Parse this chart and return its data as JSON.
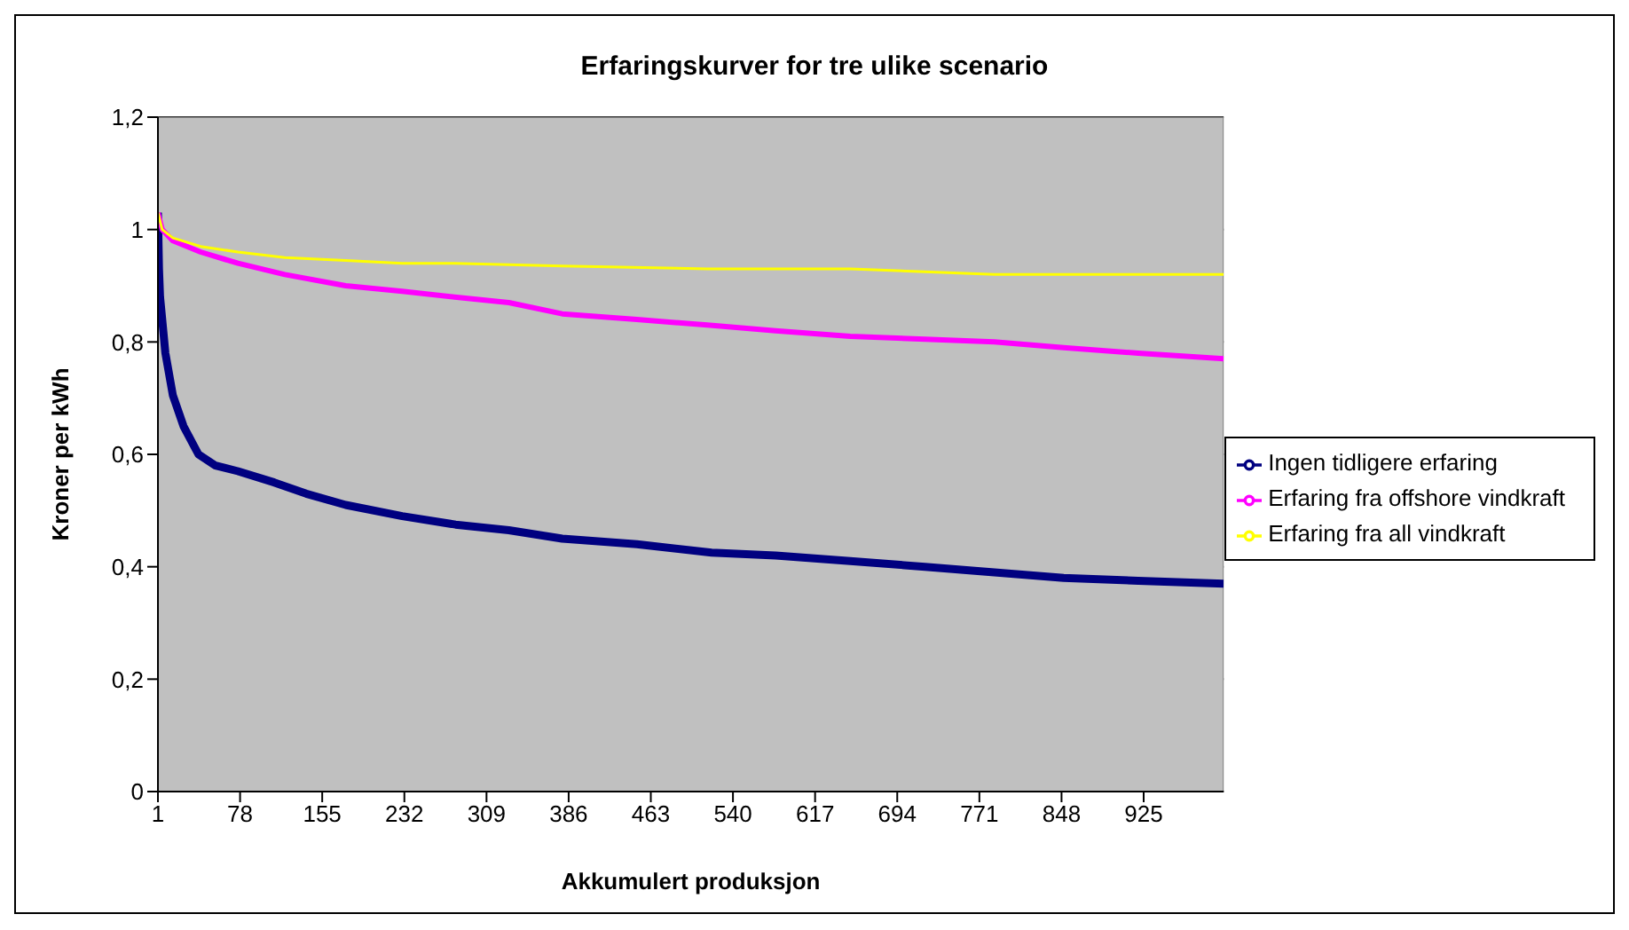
{
  "chart_data": {
    "type": "line",
    "title": "Erfaringskurver for tre ulike scenario",
    "xlabel": "Akkumulert produksjon",
    "ylabel": "Kroner per kWh",
    "xlim": [
      1,
      1000
    ],
    "xticks": [
      1,
      78,
      155,
      232,
      309,
      386,
      463,
      540,
      617,
      694,
      771,
      848,
      925
    ],
    "ylim": [
      0,
      1.2
    ],
    "yticks": [
      0,
      {
        "value": 0.2,
        "label": "0,2"
      },
      {
        "value": 0.4,
        "label": "0,4"
      },
      {
        "value": 0.6,
        "label": "0,6"
      },
      {
        "value": 0.8,
        "label": "0,8"
      },
      1,
      {
        "value": 1.2,
        "label": "1,2"
      }
    ],
    "grid": "y",
    "legend": "right",
    "marker": "none",
    "line_style": "solid",
    "series": [
      {
        "name": "Ingen tidligere erfaring",
        "color": "#000080",
        "x": [
          1,
          2,
          3,
          5,
          8,
          15,
          25,
          39,
          55,
          76,
          110,
          140,
          177,
          230,
          280,
          330,
          380,
          450,
          520,
          580,
          650,
          720,
          785,
          850,
          920,
          1000
        ],
        "values": [
          1.03,
          0.93,
          0.88,
          0.84,
          0.78,
          0.705,
          0.65,
          0.6,
          0.58,
          0.57,
          0.55,
          0.53,
          0.51,
          0.49,
          0.475,
          0.465,
          0.45,
          0.44,
          0.425,
          0.42,
          0.41,
          0.4,
          0.39,
          0.38,
          0.375,
          0.37
        ]
      },
      {
        "name": "Erfaring fra offshore vindkraft",
        "color": "#ff00ff",
        "x": [
          1,
          5,
          15,
          41,
          76,
          120,
          177,
          230,
          279,
          330,
          380,
          450,
          516,
          580,
          650,
          720,
          785,
          850,
          920,
          1000
        ],
        "values": [
          1.03,
          1.0,
          0.98,
          0.96,
          0.94,
          0.92,
          0.9,
          0.89,
          0.88,
          0.87,
          0.85,
          0.84,
          0.83,
          0.82,
          0.81,
          0.805,
          0.8,
          0.79,
          0.78,
          0.77
        ]
      },
      {
        "name": "Erfaring fra all vindkraft",
        "color": "#ffff00",
        "x": [
          1,
          5,
          15,
          41,
          76,
          120,
          177,
          230,
          279,
          380,
          516,
          650,
          785,
          900,
          1000
        ],
        "values": [
          1.03,
          1.0,
          0.985,
          0.97,
          0.96,
          0.95,
          0.945,
          0.94,
          0.94,
          0.935,
          0.93,
          0.93,
          0.92,
          0.92,
          0.92
        ]
      }
    ]
  }
}
